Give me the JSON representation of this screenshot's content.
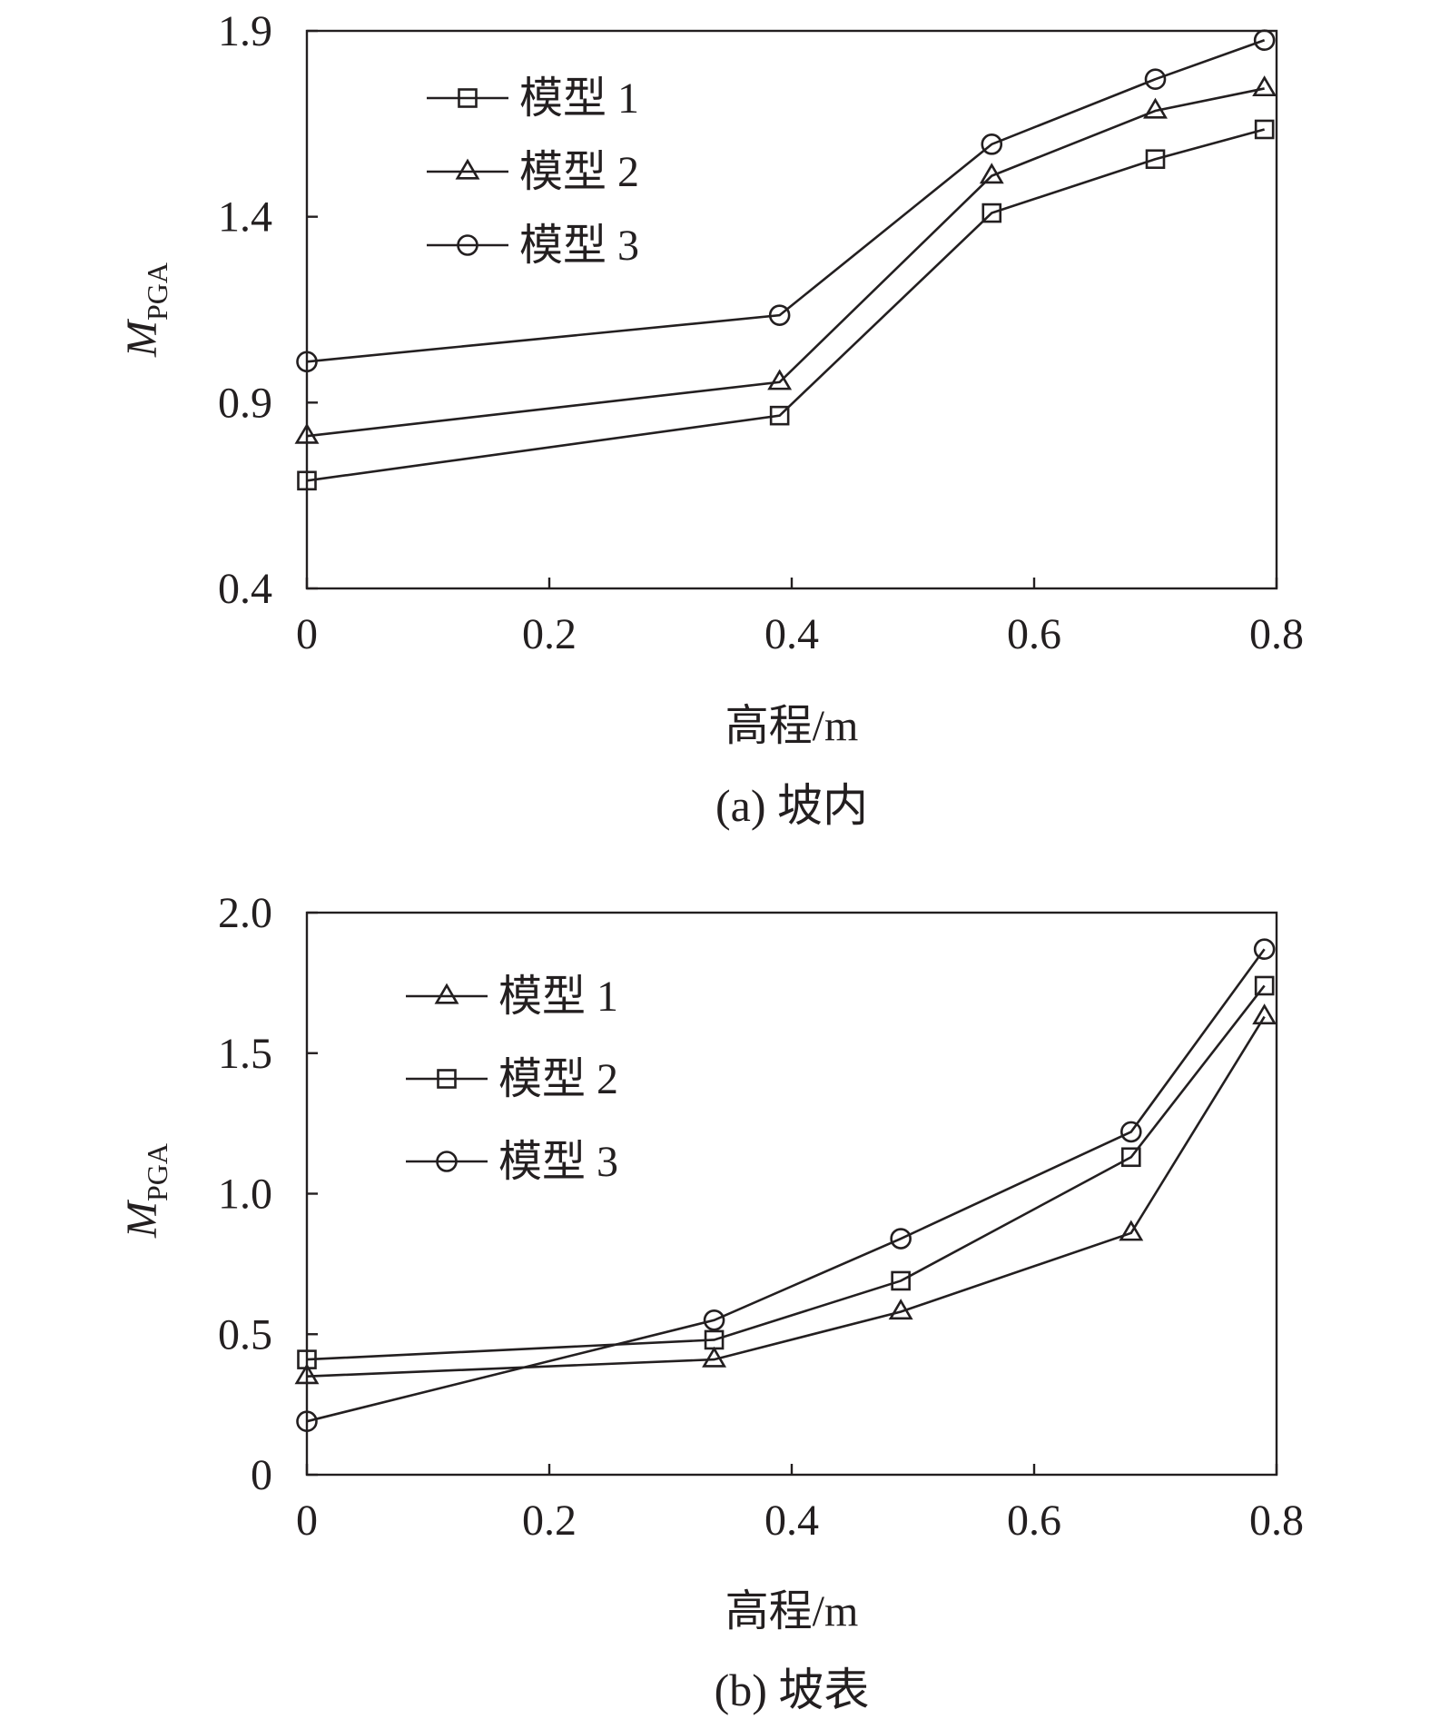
{
  "chart_data": [
    {
      "panel": "a",
      "type": "line",
      "caption": "(a) 坡内",
      "xlabel": "高程/m",
      "ylabel_main": "M",
      "ylabel_sub": "PGA",
      "xlim": [
        0,
        0.8
      ],
      "ylim": [
        0.4,
        1.9
      ],
      "xticks": [
        0,
        0.2,
        0.4,
        0.6,
        0.8
      ],
      "xtick_labels": [
        "0",
        "0.2",
        "0.4",
        "0.6",
        "0.8"
      ],
      "yticks": [
        0.4,
        0.9,
        1.4,
        1.9
      ],
      "ytick_labels": [
        "0.4",
        "0.9",
        "1.4",
        "1.9"
      ],
      "grid": false,
      "legend_position": "top-left",
      "series": [
        {
          "name": "模型 1",
          "marker": "square",
          "x": [
            0,
            0.39,
            0.565,
            0.7,
            0.79
          ],
          "y": [
            0.69,
            0.865,
            1.41,
            1.555,
            1.635
          ]
        },
        {
          "name": "模型 2",
          "marker": "triangle",
          "x": [
            0,
            0.39,
            0.565,
            0.7,
            0.79
          ],
          "y": [
            0.81,
            0.955,
            1.51,
            1.685,
            1.745
          ]
        },
        {
          "name": "模型 3",
          "marker": "circle",
          "x": [
            0,
            0.39,
            0.565,
            0.7,
            0.79
          ],
          "y": [
            1.01,
            1.135,
            1.595,
            1.77,
            1.875
          ]
        }
      ]
    },
    {
      "panel": "b",
      "type": "line",
      "caption": "(b) 坡表",
      "xlabel": "高程/m",
      "ylabel_main": "M",
      "ylabel_sub": "PGA",
      "xlim": [
        0,
        0.8
      ],
      "ylim": [
        0,
        2.0
      ],
      "xticks": [
        0,
        0.2,
        0.4,
        0.6,
        0.8
      ],
      "xtick_labels": [
        "0",
        "0.2",
        "0.4",
        "0.6",
        "0.8"
      ],
      "yticks": [
        0,
        0.5,
        1.0,
        1.5,
        2.0
      ],
      "ytick_labels": [
        "0",
        "0.5",
        "1.0",
        "1.5",
        "2.0"
      ],
      "grid": false,
      "legend_position": "top-left",
      "series": [
        {
          "name": "模型 1",
          "marker": "triangle",
          "x": [
            0,
            0.336,
            0.49,
            0.68,
            0.79
          ],
          "y": [
            0.35,
            0.41,
            0.58,
            0.86,
            1.63
          ]
        },
        {
          "name": "模型 2",
          "marker": "square",
          "x": [
            0,
            0.336,
            0.49,
            0.68,
            0.79
          ],
          "y": [
            0.41,
            0.48,
            0.69,
            1.13,
            1.74
          ]
        },
        {
          "name": "模型 3",
          "marker": "circle",
          "x": [
            0,
            0.336,
            0.49,
            0.68,
            0.79
          ],
          "y": [
            0.19,
            0.55,
            0.84,
            1.22,
            1.87
          ]
        }
      ]
    }
  ]
}
